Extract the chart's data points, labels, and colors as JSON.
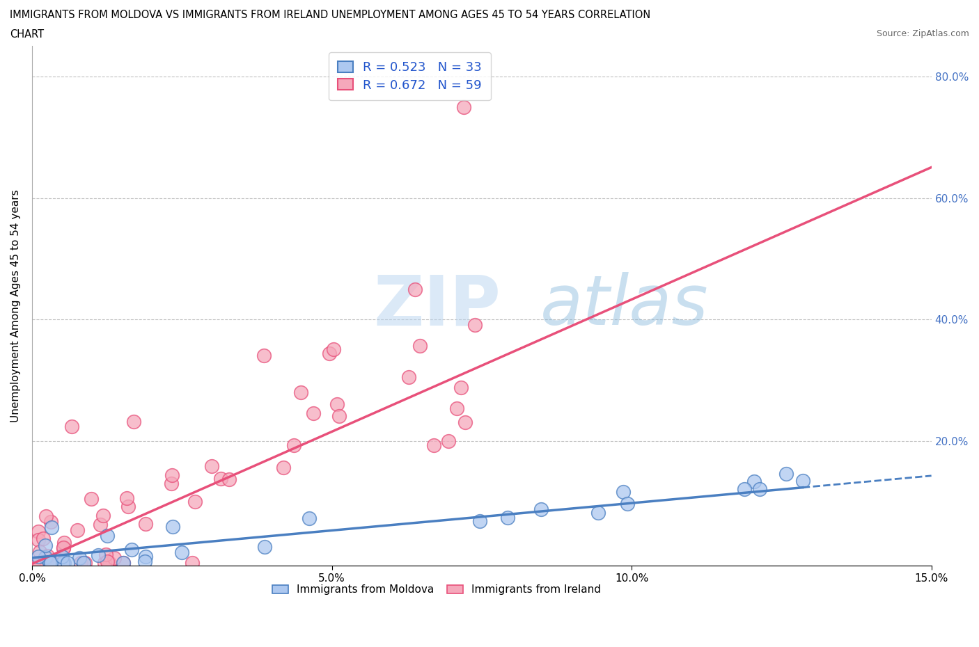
{
  "title_line1": "IMMIGRANTS FROM MOLDOVA VS IMMIGRANTS FROM IRELAND UNEMPLOYMENT AMONG AGES 45 TO 54 YEARS CORRELATION",
  "title_line2": "CHART",
  "source": "Source: ZipAtlas.com",
  "ylabel": "Unemployment Among Ages 45 to 54 years",
  "xlabel_moldova": "Immigrants from Moldova",
  "xlabel_ireland": "Immigrants from Ireland",
  "moldova_R": 0.523,
  "moldova_N": 33,
  "ireland_R": 0.672,
  "ireland_N": 59,
  "moldova_color": "#adc8f0",
  "ireland_color": "#f5a8bb",
  "moldova_line_color": "#4a7fc1",
  "ireland_line_color": "#e8507a",
  "x_min": 0.0,
  "x_max": 0.15,
  "y_min": -0.005,
  "y_max": 0.85,
  "y_ticks": [
    0.2,
    0.4,
    0.6,
    0.8
  ],
  "y_tick_labels": [
    "20.0%",
    "40.0%",
    "60.0%",
    "80.0%"
  ],
  "x_ticks": [
    0.0,
    0.05,
    0.1,
    0.15
  ],
  "x_tick_labels": [
    "0.0%",
    "5.0%",
    "10.0%",
    "15.0%"
  ],
  "watermark_zip": "ZIP",
  "watermark_atlas": "atlas",
  "ireland_slope": 4.35,
  "ireland_intercept": -0.005,
  "moldova_slope": 0.95,
  "moldova_intercept": 0.005
}
